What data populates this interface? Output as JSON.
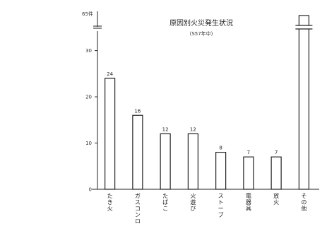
{
  "chart_data": {
    "type": "bar",
    "title": "原因別火災発生状況",
    "subtitle": "(S57年中)",
    "ylabel": "",
    "xlabel": "",
    "unit_label": "65件",
    "ylim": [
      0,
      33
    ],
    "axis_break": true,
    "yticks": [
      0,
      10,
      20,
      30
    ],
    "ytick_labels": [
      "0",
      "10",
      "20",
      "30"
    ],
    "categories": [
      "たき火",
      "ガスコンロ",
      "たばこ",
      "火遊び",
      "ストーブ",
      "電器具",
      "放火",
      "その他"
    ],
    "values": [
      24,
      16,
      12,
      12,
      8,
      7,
      7,
      65
    ],
    "data_labels": [
      "24",
      "16",
      "12",
      "12",
      "8",
      "7",
      "7",
      ""
    ],
    "grid": false,
    "colors": {
      "bar_fill": "#ffffff",
      "bar_stroke": "#222222",
      "axis": "#222222"
    }
  }
}
